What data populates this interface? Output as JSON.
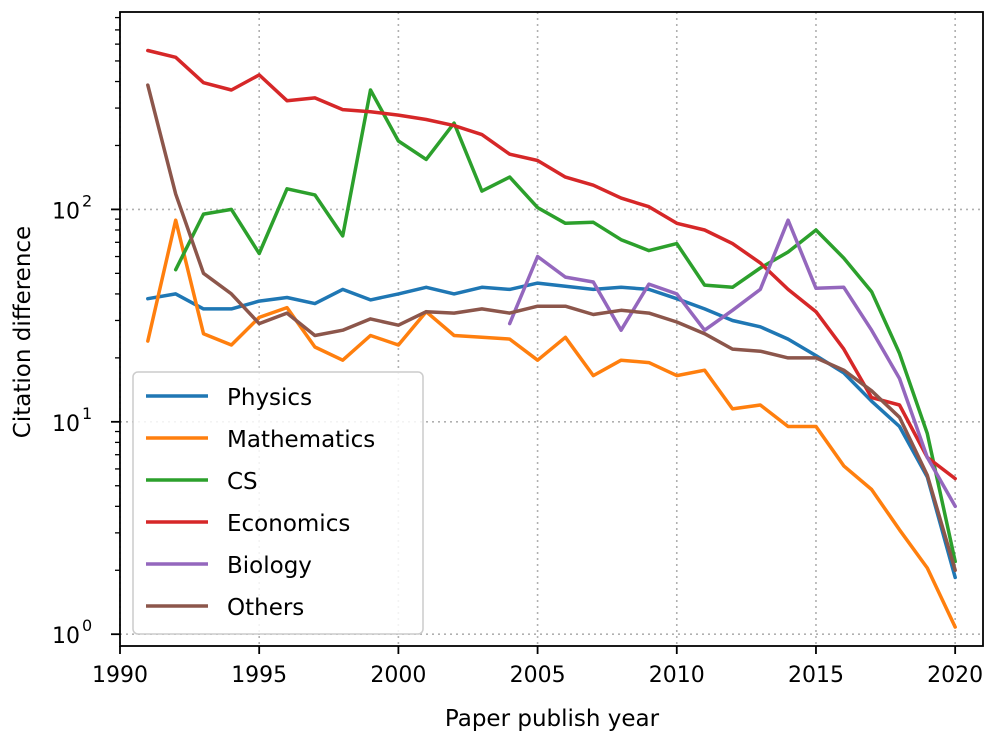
{
  "chart_data": {
    "type": "line",
    "xlabel": "Paper publish year",
    "ylabel": "Citation difference",
    "y_scale": "log",
    "xlim": [
      1990,
      2021
    ],
    "ylim": [
      0.88,
      850
    ],
    "x_ticks": [
      1990,
      1995,
      2000,
      2005,
      2010,
      2015,
      2020
    ],
    "x_tick_labels": [
      "1990",
      "1995",
      "2000",
      "2005",
      "2010",
      "2015",
      "2020"
    ],
    "y_ticks": [
      {
        "value": 1,
        "base": "10",
        "exp": "0"
      },
      {
        "value": 10,
        "base": "10",
        "exp": "1"
      },
      {
        "value": 100,
        "base": "10",
        "exp": "2"
      }
    ],
    "grid": true,
    "legend_position": "bottom-left",
    "series": [
      {
        "name": "Physics",
        "color": "#1f77b4",
        "x": [
          1991,
          1992,
          1993,
          1994,
          1995,
          1996,
          1997,
          1998,
          1999,
          2000,
          2001,
          2002,
          2003,
          2004,
          2005,
          2006,
          2007,
          2008,
          2009,
          2010,
          2011,
          2012,
          2013,
          2014,
          2015,
          2016,
          2017,
          2018,
          2019,
          2020
        ],
        "y": [
          38,
          40,
          34,
          34,
          37,
          38.5,
          36,
          42,
          37.5,
          40,
          43,
          40,
          43,
          42,
          45,
          43.5,
          42,
          43,
          42,
          38,
          34,
          30,
          28,
          24.5,
          20.5,
          17,
          12.5,
          9.5,
          5.5,
          1.85
        ]
      },
      {
        "name": "Mathematics",
        "color": "#ff7f0e",
        "x": [
          1991,
          1992,
          1993,
          1994,
          1995,
          1996,
          1997,
          1998,
          1999,
          2000,
          2001,
          2002,
          2003,
          2004,
          2005,
          2006,
          2007,
          2008,
          2009,
          2010,
          2011,
          2012,
          2013,
          2014,
          2015,
          2016,
          2017,
          2018,
          2019,
          2020
        ],
        "y": [
          24,
          89,
          26,
          23,
          31,
          34.5,
          22.5,
          19.5,
          25.5,
          23,
          33,
          25.5,
          25,
          24.5,
          19.5,
          25,
          16.5,
          19.5,
          19,
          16.5,
          17.5,
          11.5,
          12,
          9.5,
          9.5,
          6.2,
          4.8,
          3.1,
          2.05,
          1.08
        ]
      },
      {
        "name": "CS",
        "color": "#2ca02c",
        "x": [
          1992,
          1993,
          1994,
          1995,
          1996,
          1997,
          1998,
          1999,
          2000,
          2001,
          2002,
          2003,
          2004,
          2005,
          2006,
          2007,
          2008,
          2009,
          2010,
          2011,
          2012,
          2013,
          2014,
          2015,
          2016,
          2017,
          2018,
          2019,
          2020
        ],
        "y": [
          52,
          95,
          100,
          62,
          125,
          117,
          75,
          365,
          210,
          172,
          255,
          122,
          142,
          102,
          86,
          87,
          72,
          64,
          69,
          44,
          43,
          53,
          63,
          80,
          59,
          41,
          21,
          8.8,
          2.2
        ]
      },
      {
        "name": "Economics",
        "color": "#d62728",
        "x": [
          1991,
          1992,
          1993,
          1994,
          1995,
          1996,
          1997,
          1998,
          1999,
          2000,
          2001,
          2002,
          2003,
          2004,
          2005,
          2006,
          2007,
          2008,
          2009,
          2010,
          2011,
          2012,
          2013,
          2014,
          2015,
          2016,
          2017,
          2018,
          2019,
          2020
        ],
        "y": [
          560,
          520,
          395,
          365,
          430,
          325,
          335,
          295,
          288,
          278,
          265,
          248,
          225,
          182,
          170,
          142,
          130,
          113,
          103,
          86,
          80,
          69,
          56,
          42,
          33,
          22,
          13,
          12,
          6.8,
          5.4
        ]
      },
      {
        "name": "Biology",
        "color": "#9467bd",
        "x": [
          2004,
          2005,
          2006,
          2007,
          2008,
          2009,
          2010,
          2011,
          2012,
          2013,
          2014,
          2015,
          2016,
          2017,
          2018,
          2019,
          2020
        ],
        "y": [
          29,
          60,
          48,
          45.5,
          27,
          44.5,
          40,
          27,
          33.5,
          42,
          89,
          42.5,
          43,
          27,
          16,
          6.8,
          4
        ]
      },
      {
        "name": "Others",
        "color": "#8c564b",
        "x": [
          1991,
          1992,
          1993,
          1994,
          1995,
          1996,
          1997,
          1998,
          1999,
          2000,
          2001,
          2002,
          2003,
          2004,
          2005,
          2006,
          2007,
          2008,
          2009,
          2010,
          2011,
          2012,
          2013,
          2014,
          2015,
          2016,
          2017,
          2018,
          2019,
          2020
        ],
        "y": [
          385,
          118,
          50,
          40,
          29,
          32.5,
          25.5,
          27,
          30.5,
          28.5,
          33,
          32.5,
          34,
          32.5,
          35,
          35,
          32,
          33.5,
          32.5,
          29.5,
          26,
          22,
          21.5,
          20,
          20,
          17.5,
          14,
          10.5,
          5.6,
          2
        ]
      }
    ]
  }
}
